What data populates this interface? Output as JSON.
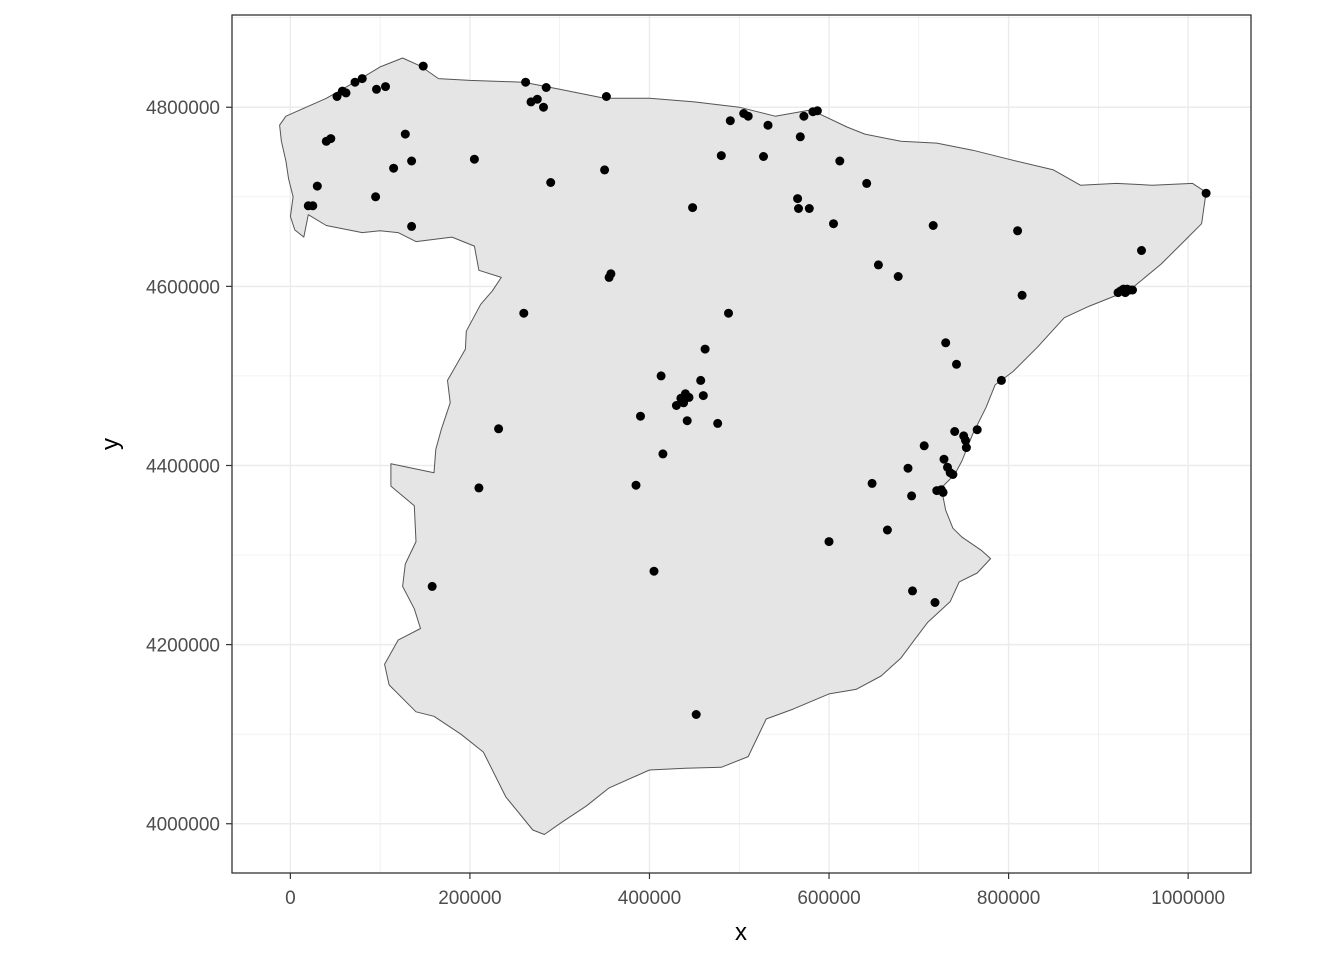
{
  "chart_data": {
    "type": "scatter",
    "title": "",
    "xlabel": "x",
    "ylabel": "y",
    "xlim": [
      -65000,
      1070000
    ],
    "ylim": [
      3945000,
      4903000
    ],
    "x_ticks": [
      0,
      200000,
      400000,
      600000,
      800000,
      1000000
    ],
    "x_tick_labels": [
      "0",
      "200000",
      "400000",
      "600000",
      "800000",
      "1000000"
    ],
    "y_ticks": [
      4000000,
      4200000,
      4400000,
      4600000,
      4800000
    ],
    "y_tick_labels": [
      "4000000",
      "4200000",
      "4400000",
      "4600000",
      "4800000"
    ],
    "grid": true,
    "theme": "bw",
    "colors": {
      "panel_fill": "#ffffff",
      "land_fill": "#e5e5e5",
      "land_stroke": "#555555",
      "point": "#000000",
      "grid": "#ebebeb",
      "border": "#333333",
      "tick_text": "#4d4d4d"
    },
    "land_outline": [
      [
        -5000,
        4790000
      ],
      [
        40000,
        4810000
      ],
      [
        75000,
        4830000
      ],
      [
        100000,
        4845000
      ],
      [
        125000,
        4855000
      ],
      [
        145000,
        4846000
      ],
      [
        165000,
        4832000
      ],
      [
        200000,
        4830000
      ],
      [
        260000,
        4828000
      ],
      [
        300000,
        4820000
      ],
      [
        350000,
        4810000
      ],
      [
        400000,
        4810000
      ],
      [
        450000,
        4806000
      ],
      [
        500000,
        4800000
      ],
      [
        540000,
        4790000
      ],
      [
        580000,
        4797000
      ],
      [
        620000,
        4778000
      ],
      [
        640000,
        4770000
      ],
      [
        680000,
        4762000
      ],
      [
        720000,
        4760000
      ],
      [
        760000,
        4752000
      ],
      [
        800000,
        4742000
      ],
      [
        850000,
        4730000
      ],
      [
        880000,
        4713000
      ],
      [
        920000,
        4715000
      ],
      [
        960000,
        4713000
      ],
      [
        1005000,
        4715000
      ],
      [
        1020000,
        4705000
      ],
      [
        1015000,
        4670000
      ],
      [
        995000,
        4650000
      ],
      [
        970000,
        4625000
      ],
      [
        935000,
        4596000
      ],
      [
        890000,
        4578000
      ],
      [
        862000,
        4565000
      ],
      [
        832000,
        4532000
      ],
      [
        805000,
        4505000
      ],
      [
        785000,
        4490000
      ],
      [
        775000,
        4465000
      ],
      [
        760000,
        4435000
      ],
      [
        748000,
        4405000
      ],
      [
        740000,
        4390000
      ],
      [
        725000,
        4375000
      ],
      [
        730000,
        4350000
      ],
      [
        738000,
        4330000
      ],
      [
        748000,
        4320000
      ],
      [
        770000,
        4305000
      ],
      [
        780000,
        4296000
      ],
      [
        765000,
        4280000
      ],
      [
        745000,
        4270000
      ],
      [
        735000,
        4248000
      ],
      [
        710000,
        4225000
      ],
      [
        695000,
        4205000
      ],
      [
        680000,
        4185000
      ],
      [
        658000,
        4165000
      ],
      [
        630000,
        4150000
      ],
      [
        600000,
        4145000
      ],
      [
        560000,
        4128000
      ],
      [
        530000,
        4117000
      ],
      [
        510000,
        4075000
      ],
      [
        480000,
        4063000
      ],
      [
        440000,
        4062000
      ],
      [
        400000,
        4060000
      ],
      [
        355000,
        4040000
      ],
      [
        330000,
        4020000
      ],
      [
        300000,
        4000000
      ],
      [
        283000,
        3988000
      ],
      [
        270000,
        3993000
      ],
      [
        240000,
        4030000
      ],
      [
        215000,
        4080000
      ],
      [
        190000,
        4100000
      ],
      [
        160000,
        4120000
      ],
      [
        140000,
        4125000
      ],
      [
        110000,
        4155000
      ],
      [
        105000,
        4178000
      ],
      [
        120000,
        4205000
      ],
      [
        145000,
        4218000
      ],
      [
        138000,
        4240000
      ],
      [
        125000,
        4265000
      ],
      [
        128000,
        4290000
      ],
      [
        140000,
        4315000
      ],
      [
        138000,
        4355000
      ],
      [
        112000,
        4377000
      ],
      [
        112000,
        4402000
      ],
      [
        160000,
        4392000
      ],
      [
        162000,
        4418000
      ],
      [
        168000,
        4440000
      ],
      [
        178000,
        4470000
      ],
      [
        175000,
        4495000
      ],
      [
        195000,
        4530000
      ],
      [
        196000,
        4550000
      ],
      [
        212000,
        4580000
      ],
      [
        225000,
        4595000
      ],
      [
        235000,
        4610000
      ],
      [
        210000,
        4618000
      ],
      [
        205000,
        4645000
      ],
      [
        180000,
        4655000
      ],
      [
        140000,
        4650000
      ],
      [
        120000,
        4660000
      ],
      [
        100000,
        4662000
      ],
      [
        80000,
        4660000
      ],
      [
        40000,
        4668000
      ],
      [
        20000,
        4680000
      ],
      [
        15000,
        4655000
      ],
      [
        5000,
        4663000
      ],
      [
        0,
        4678000
      ],
      [
        3000,
        4700000
      ],
      [
        -2000,
        4720000
      ],
      [
        -5000,
        4740000
      ],
      [
        -10000,
        4762000
      ],
      [
        -12000,
        4780000
      ]
    ],
    "points": [
      [
        20000,
        4690000
      ],
      [
        25000,
        4690000
      ],
      [
        30000,
        4712000
      ],
      [
        40000,
        4762000
      ],
      [
        45000,
        4765000
      ],
      [
        52000,
        4812000
      ],
      [
        58000,
        4818000
      ],
      [
        62000,
        4816000
      ],
      [
        72000,
        4828000
      ],
      [
        80000,
        4832000
      ],
      [
        96000,
        4820000
      ],
      [
        106000,
        4823000
      ],
      [
        95000,
        4700000
      ],
      [
        115000,
        4732000
      ],
      [
        128000,
        4770000
      ],
      [
        135000,
        4740000
      ],
      [
        135000,
        4667000
      ],
      [
        148000,
        4846000
      ],
      [
        205000,
        4742000
      ],
      [
        210000,
        4375000
      ],
      [
        158000,
        4265000
      ],
      [
        232000,
        4441000
      ],
      [
        260000,
        4570000
      ],
      [
        262000,
        4828000
      ],
      [
        268000,
        4806000
      ],
      [
        275000,
        4809000
      ],
      [
        282000,
        4800000
      ],
      [
        285000,
        4822000
      ],
      [
        290000,
        4716000
      ],
      [
        350000,
        4730000
      ],
      [
        352000,
        4812000
      ],
      [
        355000,
        4610000
      ],
      [
        357000,
        4614000
      ],
      [
        385000,
        4378000
      ],
      [
        390000,
        4455000
      ],
      [
        405000,
        4282000
      ],
      [
        413000,
        4500000
      ],
      [
        415000,
        4413000
      ],
      [
        430000,
        4467000
      ],
      [
        435000,
        4475000
      ],
      [
        438000,
        4470000
      ],
      [
        440000,
        4480000
      ],
      [
        442000,
        4450000
      ],
      [
        444000,
        4476000
      ],
      [
        448000,
        4688000
      ],
      [
        452000,
        4122000
      ],
      [
        457000,
        4495000
      ],
      [
        460000,
        4478000
      ],
      [
        462000,
        4530000
      ],
      [
        476000,
        4447000
      ],
      [
        480000,
        4746000
      ],
      [
        488000,
        4570000
      ],
      [
        490000,
        4785000
      ],
      [
        505000,
        4793000
      ],
      [
        510000,
        4790000
      ],
      [
        527000,
        4745000
      ],
      [
        532000,
        4780000
      ],
      [
        565000,
        4698000
      ],
      [
        566000,
        4687000
      ],
      [
        568000,
        4767000
      ],
      [
        572000,
        4790000
      ],
      [
        578000,
        4687000
      ],
      [
        582000,
        4795000
      ],
      [
        587000,
        4796000
      ],
      [
        600000,
        4315000
      ],
      [
        605000,
        4670000
      ],
      [
        612000,
        4740000
      ],
      [
        642000,
        4715000
      ],
      [
        648000,
        4380000
      ],
      [
        655000,
        4624000
      ],
      [
        665000,
        4328000
      ],
      [
        677000,
        4611000
      ],
      [
        688000,
        4397000
      ],
      [
        692000,
        4366000
      ],
      [
        693000,
        4260000
      ],
      [
        706000,
        4422000
      ],
      [
        716000,
        4668000
      ],
      [
        718000,
        4247000
      ],
      [
        720000,
        4372000
      ],
      [
        725000,
        4373000
      ],
      [
        727000,
        4370000
      ],
      [
        728000,
        4407000
      ],
      [
        730000,
        4537000
      ],
      [
        732000,
        4398000
      ],
      [
        735000,
        4392000
      ],
      [
        738000,
        4390000
      ],
      [
        740000,
        4438000
      ],
      [
        742000,
        4513000
      ],
      [
        750000,
        4433000
      ],
      [
        752000,
        4428000
      ],
      [
        753000,
        4420000
      ],
      [
        765000,
        4440000
      ],
      [
        792000,
        4495000
      ],
      [
        810000,
        4662000
      ],
      [
        815000,
        4590000
      ],
      [
        922000,
        4593000
      ],
      [
        925000,
        4595000
      ],
      [
        928000,
        4597000
      ],
      [
        930000,
        4593000
      ],
      [
        932000,
        4597000
      ],
      [
        935000,
        4596000
      ],
      [
        938000,
        4596000
      ],
      [
        948000,
        4640000
      ],
      [
        1020000,
        4704000
      ]
    ]
  }
}
